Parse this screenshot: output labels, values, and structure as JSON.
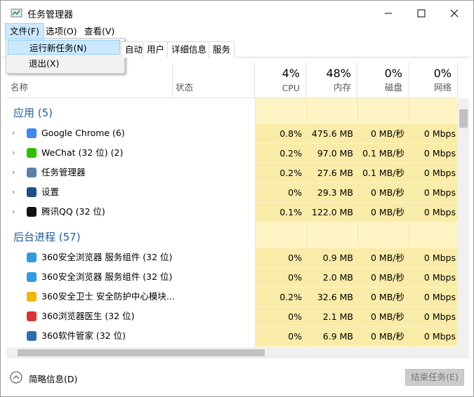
{
  "window": {
    "title": "任务管理器"
  },
  "menu": [
    "文件(F)",
    "选项(O)",
    "查看(V)"
  ],
  "file_menu": [
    "运行新任务(N)",
    "退出(X)"
  ],
  "tabs": [
    "自动",
    "用户",
    "详细信息",
    "服务"
  ],
  "columns": {
    "name": "名称",
    "status": "状态",
    "cpu": {
      "usage": "4%",
      "label": "CPU"
    },
    "memory": {
      "usage": "48%",
      "label": "内存"
    },
    "disk": {
      "usage": "0%",
      "label": "磁盘"
    },
    "network": {
      "usage": "0%",
      "label": "网络"
    }
  },
  "groups": [
    {
      "title": "应用 (5)",
      "rows": [
        {
          "name": "Google Chrome (6)",
          "cpu": "0.8%",
          "memory": "475.6 MB",
          "disk": "0 MB/秒",
          "network": "0 Mbps"
        },
        {
          "name": "WeChat (32 位) (2)",
          "cpu": "0.2%",
          "memory": "97.0 MB",
          "disk": "0.1 MB/秒",
          "network": "0 Mbps"
        },
        {
          "name": "任务管理器",
          "cpu": "0.2%",
          "memory": "27.6 MB",
          "disk": "0.1 MB/秒",
          "network": "0 Mbps"
        },
        {
          "name": "设置",
          "cpu": "0%",
          "memory": "29.3 MB",
          "disk": "0 MB/秒",
          "network": "0 Mbps"
        },
        {
          "name": "腾讯QQ (32 位)",
          "cpu": "0.1%",
          "memory": "122.0 MB",
          "disk": "0 MB/秒",
          "network": "0 Mbps"
        }
      ]
    },
    {
      "title": "后台进程 (57)",
      "rows": [
        {
          "name": "360安全浏览器 服务组件 (32 位)",
          "cpu": "0%",
          "memory": "0.9 MB",
          "disk": "0 MB/秒",
          "network": "0 Mbps"
        },
        {
          "name": "360安全浏览器 服务组件 (32 位)",
          "cpu": "0%",
          "memory": "2.0 MB",
          "disk": "0 MB/秒",
          "network": "0 Mbps"
        },
        {
          "name": "360安全卫士 安全防护中心模块...",
          "cpu": "0.2%",
          "memory": "32.6 MB",
          "disk": "0 MB/秒",
          "network": "0 Mbps"
        },
        {
          "name": "360浏览器医生 (32 位)",
          "cpu": "0%",
          "memory": "2.1 MB",
          "disk": "0 MB/秒",
          "network": "0 Mbps"
        },
        {
          "name": "360软件管家 (32 位)",
          "cpu": "0%",
          "memory": "6.9 MB",
          "disk": "0 MB/秒",
          "network": "0 Mbps"
        }
      ]
    }
  ],
  "footer": {
    "fewer_details": "简略信息(D)",
    "end_task": "结束任务(E)"
  }
}
